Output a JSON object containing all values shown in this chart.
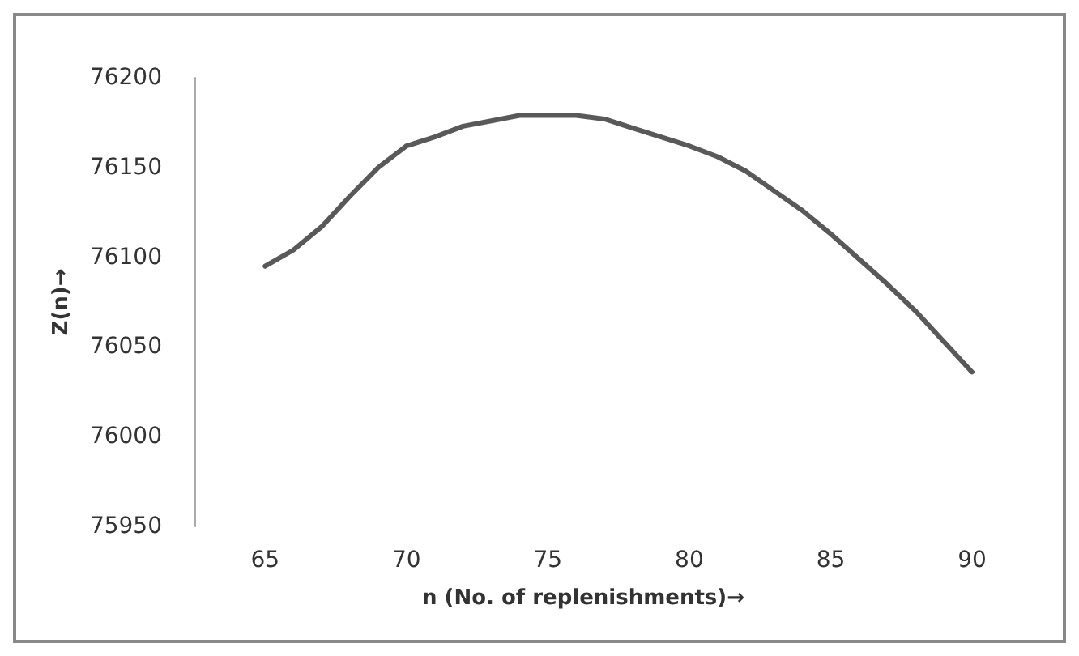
{
  "chart_data": {
    "type": "line",
    "xlabel": "n (No. of replenishments)→",
    "ylabel": "Z(n)→",
    "x": [
      65,
      66,
      67,
      68,
      69,
      70,
      71,
      72,
      73,
      74,
      75,
      76,
      77,
      78,
      79,
      80,
      81,
      82,
      83,
      84,
      85,
      86,
      87,
      88,
      89,
      90
    ],
    "series": [
      {
        "color": "#595959",
        "values": [
          76095,
          76104,
          76117,
          76134,
          76150,
          76162,
          76167,
          76173,
          76176,
          76179,
          76179,
          76179,
          76177,
          76172,
          76167,
          76162,
          76156,
          76148,
          76137,
          76126,
          76113,
          76099,
          76085,
          76070,
          76053,
          76036
        ]
      }
    ],
    "xlim": [
      62.5,
      90
    ],
    "xticks": [
      65,
      70,
      75,
      80,
      85,
      90
    ],
    "ylim": [
      75950,
      76200
    ],
    "yticks": [
      75950,
      76000,
      76050,
      76100,
      76150,
      76200
    ],
    "grid": false,
    "marker": "none",
    "line_style": "solid"
  }
}
